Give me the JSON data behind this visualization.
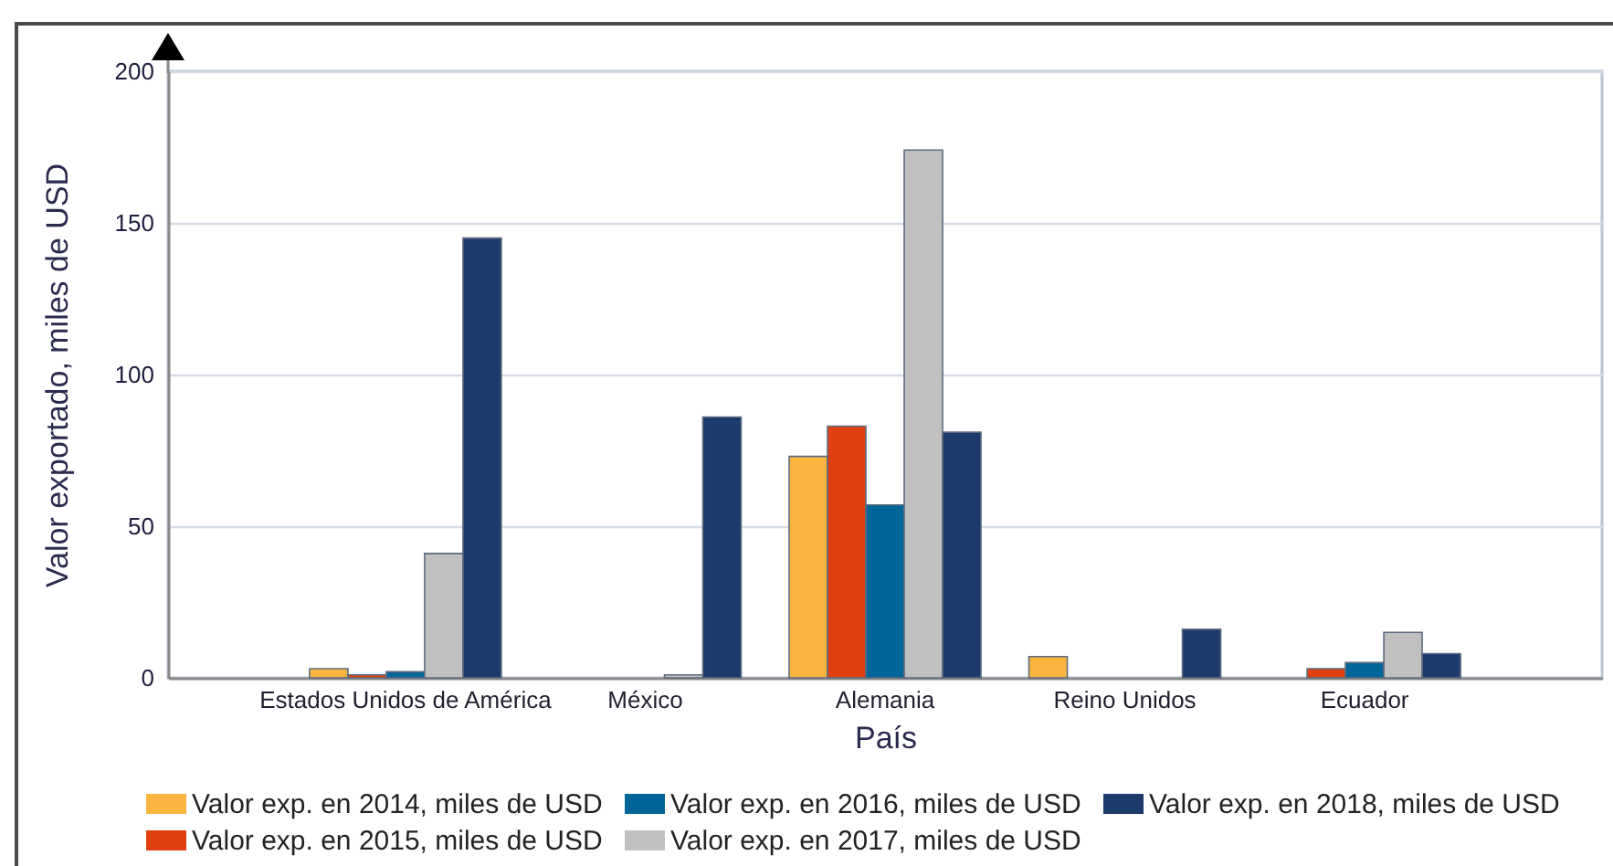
{
  "chart_data": {
    "type": "bar",
    "xlabel": "País",
    "ylabel": "Valor exportado, miles de USD",
    "categories": [
      "Estados Unidos de América",
      "México",
      "Alemania",
      "Reino Unidos",
      "Ecuador"
    ],
    "series": [
      {
        "name": "Valor exp. en 2014, miles de USD",
        "color": "#f9b53f",
        "values": [
          3,
          null,
          73,
          7,
          null
        ]
      },
      {
        "name": "Valor exp. en 2015, miles de USD",
        "color": "#e0400f",
        "values": [
          1,
          null,
          83,
          null,
          3
        ]
      },
      {
        "name": "Valor exp. en 2016, miles de USD",
        "color": "#006699",
        "values": [
          2,
          null,
          57,
          null,
          5
        ]
      },
      {
        "name": "Valor exp. en 2017, miles de USD",
        "color": "#c0c0c0",
        "values": [
          41,
          1,
          174,
          null,
          15
        ]
      },
      {
        "name": "Valor exp. en 2018, miles de USD",
        "color": "#1c3a6b",
        "values": [
          145,
          86,
          81,
          16,
          8
        ]
      }
    ],
    "ylim": [
      0,
      200
    ],
    "yticks": [
      0,
      50,
      100,
      150,
      200
    ],
    "grid": "y",
    "legend": "bottom"
  }
}
